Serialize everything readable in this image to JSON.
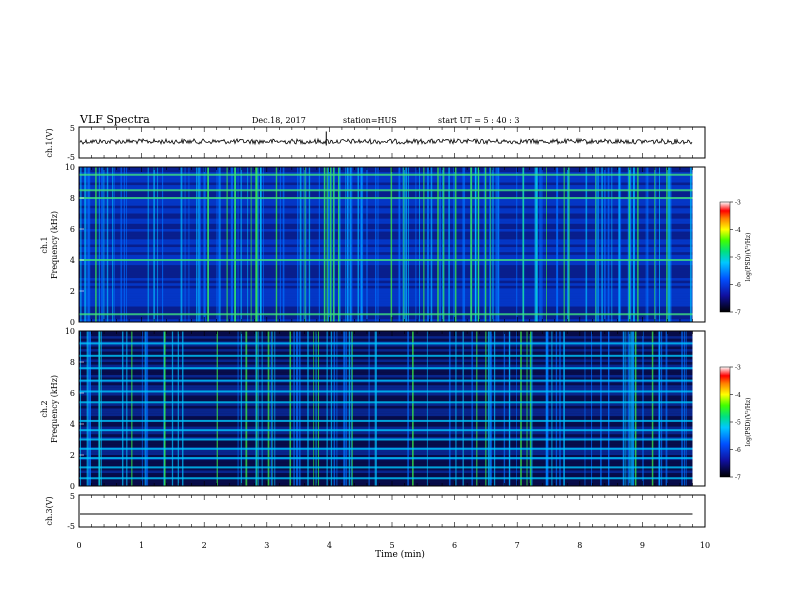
{
  "header": {
    "title": "VLF Spectra",
    "date": "Dec.18, 2017",
    "station": "station=HUS",
    "start": "start  UT =   5  : 40 : 3"
  },
  "chart_data": [
    {
      "type": "line",
      "panel": "ch1-waveform",
      "ylabel": "ch.1(V)",
      "ylim": [
        -5,
        5
      ],
      "y_tick_labels": [
        "5",
        "-5"
      ],
      "xlim": [
        0,
        10
      ],
      "x_unit": "min",
      "series": [
        {
          "values_description_free": true,
          "baseline": 0.0,
          "noise_amplitude": 0.4,
          "x_end": 9.8
        }
      ]
    },
    {
      "type": "heatmap",
      "panel": "ch1-spectrogram",
      "ylabel": "ch.1\nFrequency (kHz)",
      "ylim": [
        0,
        10
      ],
      "y_tick_labels": [
        "10",
        "8",
        "6",
        "4",
        "2",
        "0"
      ],
      "xlim": [
        0,
        10
      ],
      "x_end": 9.8,
      "banded_lines_khz": [
        0.5,
        4.0,
        8.0,
        8.5,
        9.5
      ],
      "colorbar": {
        "label": "log(PSD)(V²/Hz)",
        "range": [
          -7,
          -3
        ],
        "tick_labels": [
          "-3",
          "-4",
          "-5",
          "-6",
          "-7"
        ]
      }
    },
    {
      "type": "heatmap",
      "panel": "ch2-spectrogram",
      "ylabel": "ch.2\nFrequency (kHz)",
      "ylim": [
        0,
        10
      ],
      "y_tick_labels": [
        "10",
        "8",
        "6",
        "4",
        "2",
        "0"
      ],
      "xlim": [
        0,
        10
      ],
      "x_end": 9.8,
      "banded_lines_khz": [
        0.5,
        1.2,
        1.8,
        2.4,
        3.0,
        3.6,
        4.2,
        5.4,
        6.1,
        6.8,
        7.6,
        8.4,
        9.2
      ],
      "colorbar": {
        "label": "log(PSD)(V²/Hz)",
        "range": [
          -7,
          -3
        ],
        "tick_labels": [
          "-3",
          "-4",
          "-5",
          "-6",
          "-7"
        ]
      }
    },
    {
      "type": "line",
      "panel": "ch3-waveform",
      "ylabel": "ch.3(V)",
      "ylim": [
        -5,
        5
      ],
      "y_tick_labels": [
        "5",
        "-5"
      ],
      "xlim": [
        0,
        10
      ],
      "xlabel": "Time  (min)",
      "x_tick_labels": [
        "0",
        "1",
        "2",
        "3",
        "4",
        "5",
        "6",
        "7",
        "8",
        "9",
        "10"
      ],
      "series": [
        {
          "baseline": 0.0,
          "x_end": 9.8
        }
      ]
    }
  ]
}
